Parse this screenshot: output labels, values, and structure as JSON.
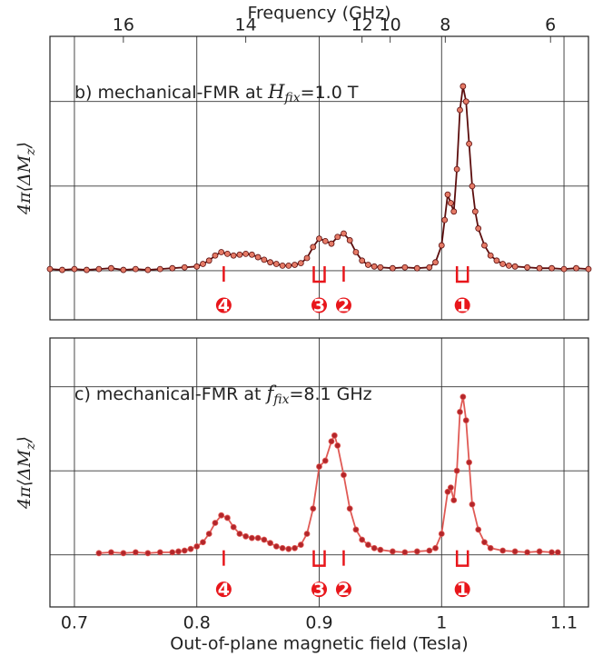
{
  "chart_data": [
    {
      "type": "line",
      "title": {
        "prefix": "b) mechanical-FMR at ",
        "symbol": "H",
        "subscript": "fix",
        "suffix": "=1.0 T"
      },
      "ylabel": {
        "main": "4π⟨ΔM",
        "subscript": "z",
        "close": "⟩"
      },
      "x2label": "Frequency (GHz)",
      "x2ticks": [
        {
          "value": 0.74,
          "label": "16"
        },
        {
          "value": 0.84,
          "label": "14"
        },
        {
          "value": 0.935,
          "label": "12"
        },
        {
          "value": 0.958,
          "label": "10"
        },
        {
          "value": 1.003,
          "label": "8"
        },
        {
          "value": 1.089,
          "label": "6"
        }
      ],
      "xlim": [
        0.68,
        1.12
      ],
      "ylim": [
        -0.58,
        2.77
      ],
      "xticks": [
        0.7,
        0.8,
        0.9,
        1.0,
        1.1
      ],
      "show_xtick_labels": false,
      "yticks": [
        0,
        1,
        2
      ],
      "grid": true,
      "x": [
        0.68,
        0.69,
        0.7,
        0.71,
        0.72,
        0.73,
        0.74,
        0.75,
        0.76,
        0.77,
        0.78,
        0.79,
        0.8,
        0.805,
        0.81,
        0.815,
        0.82,
        0.825,
        0.83,
        0.835,
        0.84,
        0.845,
        0.85,
        0.855,
        0.86,
        0.865,
        0.87,
        0.875,
        0.88,
        0.885,
        0.89,
        0.895,
        0.9,
        0.905,
        0.91,
        0.915,
        0.92,
        0.925,
        0.93,
        0.935,
        0.94,
        0.945,
        0.95,
        0.96,
        0.97,
        0.98,
        0.99,
        0.995,
        1.0,
        1.0025,
        1.005,
        1.0075,
        1.01,
        1.0125,
        1.015,
        1.0175,
        1.02,
        1.0225,
        1.025,
        1.0275,
        1.03,
        1.035,
        1.04,
        1.045,
        1.05,
        1.055,
        1.06,
        1.07,
        1.08,
        1.09,
        1.1,
        1.11,
        1.12
      ],
      "series": [
        {
          "color": "#5c0e0e",
          "marker_color": "#e57a66",
          "values": [
            0.02,
            0.01,
            0.02,
            0.01,
            0.02,
            0.03,
            0.01,
            0.02,
            0.01,
            0.02,
            0.03,
            0.04,
            0.05,
            0.08,
            0.12,
            0.18,
            0.22,
            0.2,
            0.18,
            0.19,
            0.2,
            0.19,
            0.16,
            0.13,
            0.1,
            0.08,
            0.06,
            0.06,
            0.07,
            0.09,
            0.15,
            0.28,
            0.38,
            0.35,
            0.32,
            0.4,
            0.44,
            0.36,
            0.22,
            0.12,
            0.07,
            0.05,
            0.04,
            0.03,
            0.04,
            0.03,
            0.04,
            0.1,
            0.3,
            0.6,
            0.9,
            0.8,
            0.7,
            1.2,
            1.9,
            2.18,
            2.0,
            1.5,
            1.0,
            0.7,
            0.5,
            0.3,
            0.18,
            0.12,
            0.08,
            0.06,
            0.05,
            0.04,
            0.03,
            0.03,
            0.02,
            0.03,
            0.02
          ]
        }
      ],
      "annotations": [
        {
          "text": "4",
          "x": 0.822,
          "marker": "tick"
        },
        {
          "text": "3",
          "x": 0.9,
          "marker": "bracket"
        },
        {
          "text": "2",
          "x": 0.92,
          "marker": "tick"
        },
        {
          "text": "1",
          "x": 1.017,
          "marker": "bracket"
        }
      ],
      "annotation_color": "#e8161b"
    },
    {
      "type": "line",
      "title": {
        "prefix": "c) mechanical-FMR at ",
        "symbol": "f",
        "subscript": "fix",
        "suffix": "=8.1 GHz"
      },
      "ylabel": {
        "main": "4π⟨ΔM",
        "subscript": "z",
        "close": "⟩"
      },
      "xlabel": "Out-of-plane magnetic field (Tesla)",
      "xlim": [
        0.68,
        1.12
      ],
      "ylim": [
        -0.62,
        2.58
      ],
      "xticks": [
        0.7,
        0.8,
        0.9,
        1.0,
        1.1
      ],
      "show_xtick_labels": true,
      "yticks": [
        0,
        1,
        2
      ],
      "grid": true,
      "x": [
        0.72,
        0.73,
        0.74,
        0.75,
        0.76,
        0.77,
        0.78,
        0.785,
        0.79,
        0.795,
        0.8,
        0.805,
        0.81,
        0.815,
        0.82,
        0.825,
        0.83,
        0.835,
        0.84,
        0.845,
        0.85,
        0.855,
        0.86,
        0.865,
        0.87,
        0.875,
        0.88,
        0.885,
        0.89,
        0.895,
        0.9,
        0.905,
        0.91,
        0.9125,
        0.915,
        0.92,
        0.925,
        0.93,
        0.935,
        0.94,
        0.945,
        0.95,
        0.96,
        0.97,
        0.98,
        0.99,
        0.995,
        1.0,
        1.005,
        1.0075,
        1.01,
        1.0125,
        1.015,
        1.0175,
        1.02,
        1.0225,
        1.025,
        1.03,
        1.035,
        1.04,
        1.05,
        1.06,
        1.07,
        1.08,
        1.09,
        1.095
      ],
      "series": [
        {
          "color": "#e05a55",
          "marker_color": "#b3262a",
          "values": [
            0.02,
            0.03,
            0.02,
            0.03,
            0.02,
            0.03,
            0.03,
            0.04,
            0.05,
            0.07,
            0.1,
            0.15,
            0.25,
            0.38,
            0.47,
            0.44,
            0.33,
            0.25,
            0.22,
            0.2,
            0.2,
            0.18,
            0.14,
            0.1,
            0.08,
            0.07,
            0.08,
            0.12,
            0.25,
            0.55,
            1.05,
            1.12,
            1.35,
            1.42,
            1.3,
            0.95,
            0.55,
            0.3,
            0.18,
            0.12,
            0.08,
            0.06,
            0.04,
            0.03,
            0.04,
            0.05,
            0.08,
            0.25,
            0.75,
            0.8,
            0.65,
            1.0,
            1.7,
            1.88,
            1.6,
            1.1,
            0.6,
            0.3,
            0.15,
            0.08,
            0.05,
            0.04,
            0.03,
            0.04,
            0.03,
            0.03
          ]
        }
      ],
      "annotations": [
        {
          "text": "4",
          "x": 0.822,
          "marker": "tick"
        },
        {
          "text": "3",
          "x": 0.9,
          "marker": "bracket"
        },
        {
          "text": "2",
          "x": 0.92,
          "marker": "tick"
        },
        {
          "text": "1",
          "x": 1.017,
          "marker": "bracket"
        }
      ],
      "annotation_color": "#e8161b"
    }
  ]
}
